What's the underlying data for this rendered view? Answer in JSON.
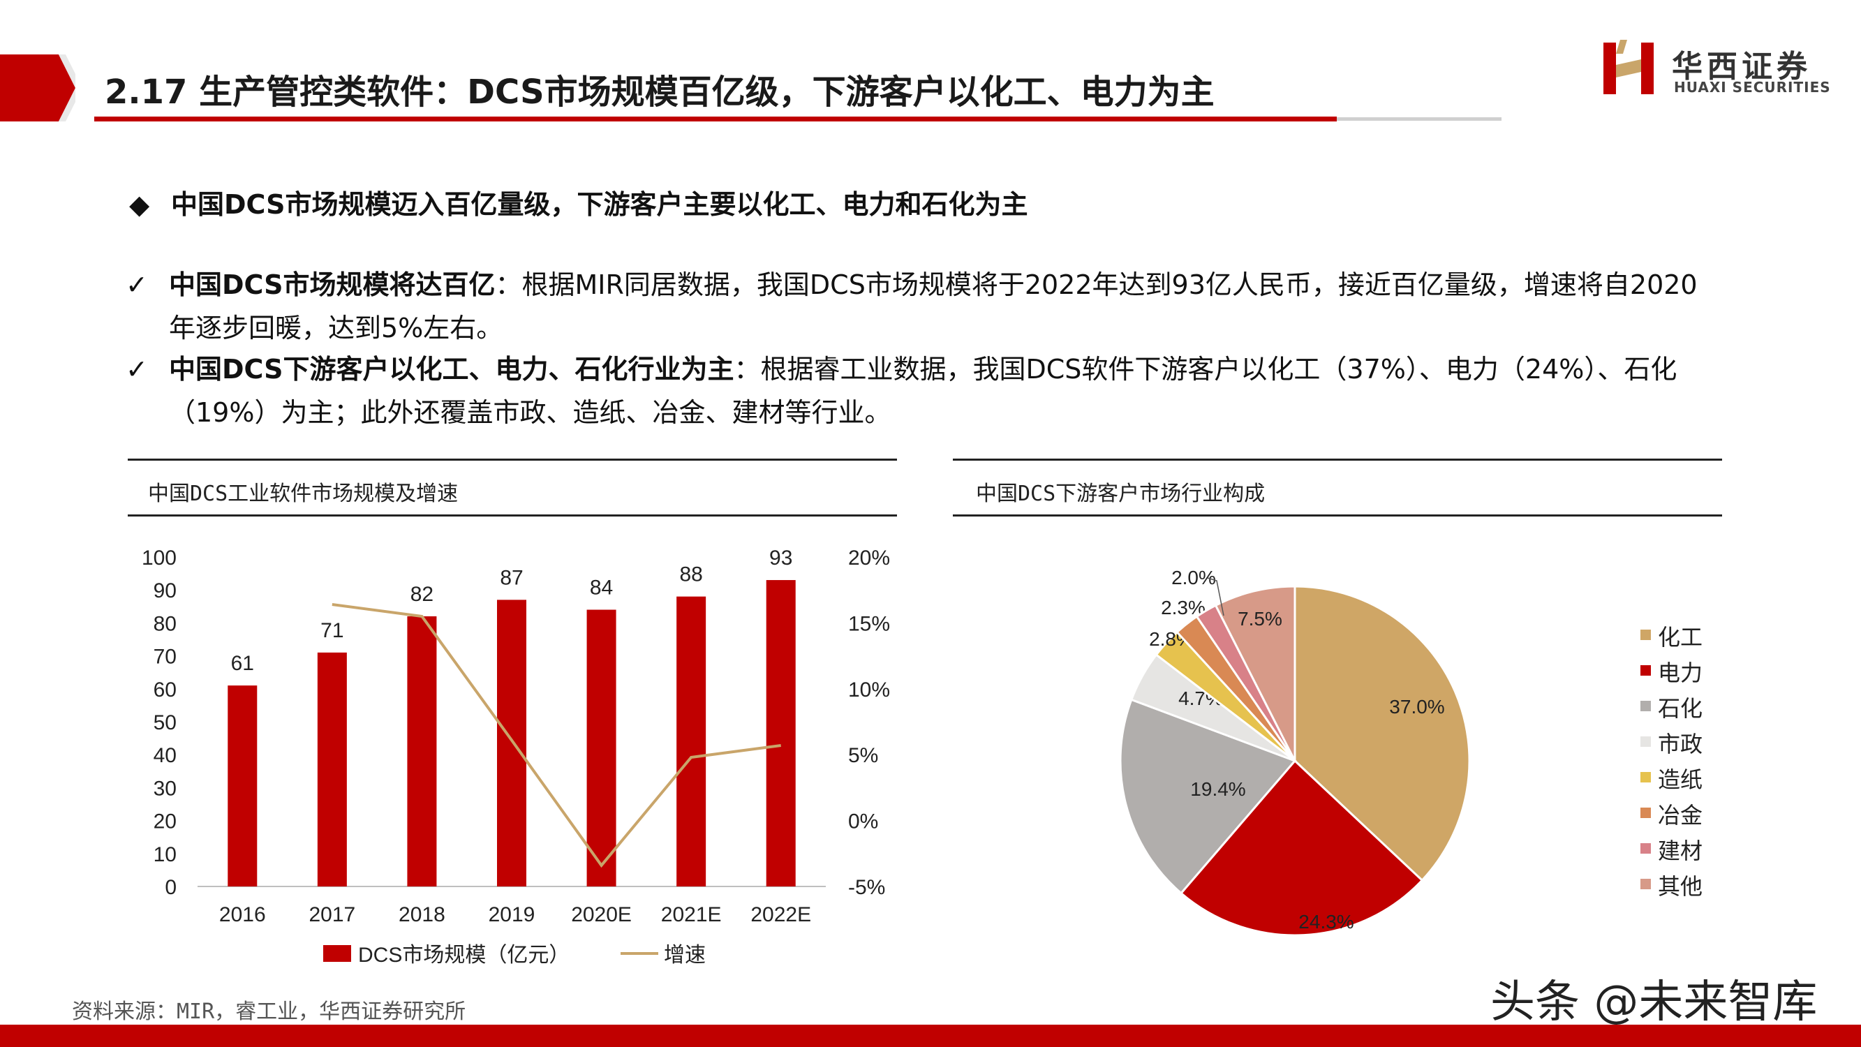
{
  "header": {
    "title": "2.17 生产管控类软件：DCS市场规模百亿级，下游客户以化工、电力为主",
    "logo_cn": "华西证券",
    "logo_en": "HUAXI SECURITIES"
  },
  "bullets": {
    "main_symbol": "◆",
    "main": "中国DCS市场规模迈入百亿量级，下游客户主要以化工、电力和石化为主",
    "check_symbol": "✓",
    "p1_bold": "中国DCS市场规模将达百亿",
    "p1_text": "：根据MIR同居数据，我国DCS市场规模将于2022年达到93亿人民币，接近百亿量级，增速将自2020年逐步回暖，达到5%左右。",
    "p2_bold": "中国DCS下游客户以化工、电力、石化行业为主",
    "p2_text": "：根据睿工业数据，我国DCS软件下游客户以化工（37%）、电力（24%）、石化（19%）为主；此外还覆盖市政、造纸、冶金、建材等行业。"
  },
  "colors": {
    "brand_red": "#c00000",
    "growth_line": "#c9a56a"
  },
  "source": "资料来源：MIR，睿工业，华西证券研究所",
  "watermark": "头条 @未来智库",
  "chart_data": [
    {
      "type": "bar",
      "title": "中国DCS工业软件市场规模及增速",
      "categories": [
        "2016",
        "2017",
        "2018",
        "2019",
        "2020E",
        "2021E",
        "2022E"
      ],
      "series": [
        {
          "name": "DCS市场规模（亿元）",
          "type": "bar",
          "axis": "left",
          "values": [
            61,
            71,
            82,
            87,
            84,
            88,
            93
          ]
        },
        {
          "name": "增速",
          "type": "line",
          "axis": "right",
          "values": [
            null,
            16.4,
            15.5,
            6.1,
            -3.4,
            4.8,
            5.7
          ]
        }
      ],
      "ylim": [
        0,
        100
      ],
      "yticks": [
        "0",
        "10",
        "20",
        "30",
        "40",
        "50",
        "60",
        "70",
        "80",
        "90",
        "100"
      ],
      "y2lim": [
        -5,
        20
      ],
      "y2ticks": [
        "-5%",
        "0%",
        "5%",
        "10%",
        "15%",
        "20%"
      ],
      "legend_position": "bottom",
      "grid": false
    },
    {
      "type": "pie",
      "title": "中国DCS下游客户市场行业构成",
      "slices": [
        {
          "label": "化工",
          "value": 37.0,
          "text": "37.0%",
          "color": "#cfa666"
        },
        {
          "label": "电力",
          "value": 24.3,
          "text": "24.3%",
          "color": "#c00000"
        },
        {
          "label": "石化",
          "value": 19.4,
          "text": "19.4%",
          "color": "#b1aeac"
        },
        {
          "label": "市政",
          "value": 4.7,
          "text": "4.7%",
          "color": "#e6e5e3"
        },
        {
          "label": "造纸",
          "value": 2.8,
          "text": "2.8%",
          "color": "#e6c24e"
        },
        {
          "label": "冶金",
          "value": 2.3,
          "text": "2.3%",
          "color": "#d98954"
        },
        {
          "label": "建材",
          "value": 2.0,
          "text": "2.0%",
          "color": "#d88188"
        },
        {
          "label": "其他",
          "value": 7.5,
          "text": "7.5%",
          "color": "#d79a88"
        }
      ],
      "legend_position": "right"
    }
  ]
}
